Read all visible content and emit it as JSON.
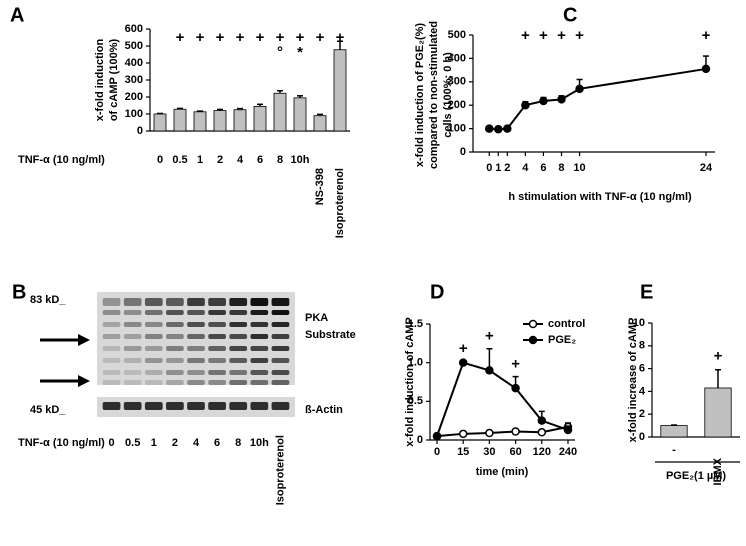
{
  "chart_data": [
    {
      "panel": "A",
      "type": "bar",
      "ylabel": [
        "x-fold induction",
        "of cAMP (100%)"
      ],
      "xlabel": "TNF-α (10 ng/ml)",
      "categories": [
        "0",
        "0.5",
        "1",
        "2",
        "4",
        "6",
        "8",
        "10h",
        "NS-398",
        "Isoproterenol"
      ],
      "values": [
        100,
        128,
        113,
        120,
        125,
        145,
        222,
        195,
        90,
        478
      ],
      "errors": [
        3,
        5,
        4,
        7,
        7,
        12,
        15,
        12,
        8,
        50
      ],
      "significance": [
        null,
        "+",
        "+",
        "+",
        "+",
        "+",
        "+",
        "+",
        "+",
        "+"
      ],
      "significance2": [
        null,
        null,
        null,
        null,
        null,
        null,
        "°",
        "*",
        null,
        null
      ],
      "color": "#c0c0c0",
      "ylim": [
        0,
        600
      ],
      "yticks": [
        0,
        100,
        200,
        300,
        400,
        500,
        600
      ]
    },
    {
      "panel": "C",
      "type": "line",
      "ylabel": [
        "x-fold induction of PGE₂(%)",
        "compared to non-stimulated",
        "cells (100%; 0 h)"
      ],
      "xlabel": "h stimulation with TNF-α (10 ng/ml)",
      "x": [
        0,
        1,
        2,
        4,
        6,
        8,
        10,
        24
      ],
      "values": [
        100,
        97,
        100,
        200,
        218,
        225,
        270,
        355
      ],
      "errors": [
        5,
        4,
        4,
        15,
        15,
        15,
        40,
        55
      ],
      "significance": [
        null,
        null,
        null,
        "+",
        "+",
        "+",
        "+",
        "+"
      ],
      "color": "#000000",
      "marker": "filled",
      "xlim": [
        -1.8,
        25
      ],
      "xticks": [
        0,
        1,
        2,
        4,
        6,
        8,
        10,
        24
      ],
      "ylim": [
        0,
        500
      ],
      "yticks": [
        0,
        100,
        200,
        300,
        400,
        500
      ]
    },
    {
      "panel": "D",
      "type": "line",
      "ylabel": "x-fold induction of cAMP",
      "xlabel": "time (min)",
      "categories": [
        "0",
        "15",
        "30",
        "60",
        "120",
        "240"
      ],
      "series": [
        {
          "name": "control",
          "color": "#000000",
          "marker": "open",
          "values": [
            0.05,
            0.08,
            0.09,
            0.11,
            0.1,
            0.17
          ],
          "errors": [
            0.01,
            0.02,
            0.02,
            0.02,
            0.02,
            0.05
          ]
        },
        {
          "name": "PGE₂",
          "color": "#000000",
          "marker": "filled",
          "values": [
            0.05,
            1.0,
            0.9,
            0.67,
            0.25,
            0.13
          ],
          "errors": [
            0.01,
            0.02,
            0.28,
            0.15,
            0.12,
            0.05
          ],
          "significance": [
            null,
            "+",
            "+",
            "+",
            null,
            null
          ]
        }
      ],
      "ylim": [
        0,
        1.5
      ],
      "yticks": [
        0,
        0.5,
        {
          "value": 1,
          "label": "1.0"
        },
        1.5
      ],
      "legend": "upper right"
    },
    {
      "panel": "E",
      "type": "bar",
      "ylabel": "x-fold increase of cAMP",
      "categories": [
        "-",
        "IBMX"
      ],
      "group_label": "PGE₂(1 µM)",
      "values": [
        1,
        4.3
      ],
      "errors": [
        0.05,
        1.6
      ],
      "significance": [
        null,
        "+"
      ],
      "color": "#c0c0c0",
      "ylim": [
        0,
        10
      ],
      "yticks": [
        0,
        2,
        4,
        6,
        8,
        10
      ]
    }
  ],
  "blot": {
    "panel": "B",
    "markers": [
      "83 kD_",
      "45 kD_"
    ],
    "blots": [
      [
        "PKA",
        "Substrate"
      ],
      [
        "ß-Actin"
      ]
    ],
    "xlabel": "TNF-α (10 ng/ml)",
    "lanes": [
      "0",
      "0.5",
      "1",
      "2",
      "4",
      "6",
      "8",
      "10h",
      "Isoproterenol"
    ]
  }
}
